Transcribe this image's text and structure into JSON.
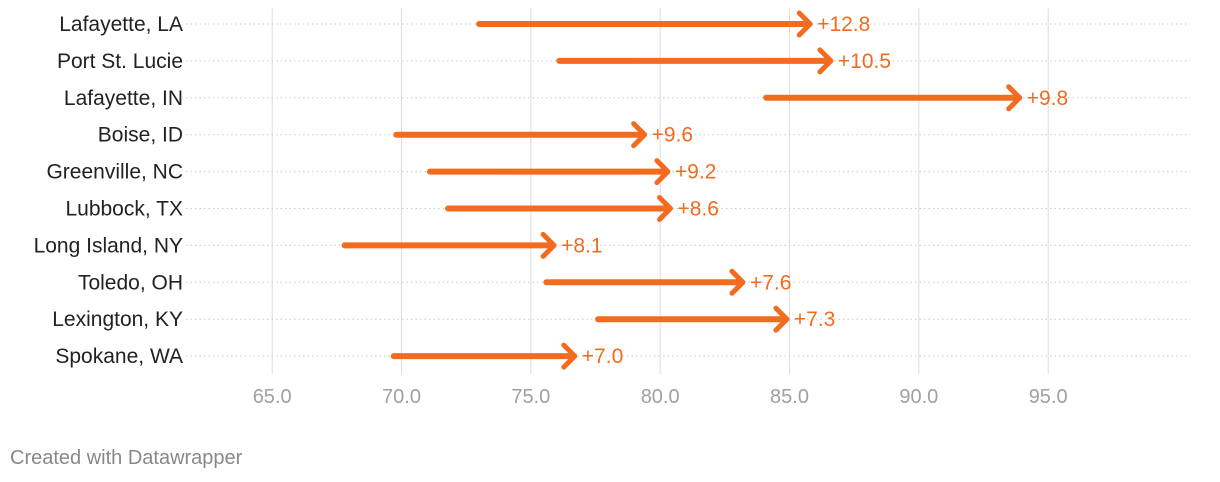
{
  "chart_data": {
    "type": "arrow",
    "categories": [
      "Lafayette, LA",
      "Port St. Lucie",
      "Lafayette, IN",
      "Boise, ID",
      "Greenville, NC",
      "Lubbock, TX",
      "Long Island, NY",
      "Toledo, OH",
      "Lexington, KY",
      "Spokane, WA"
    ],
    "series": [
      {
        "name": "",
        "start": [
          73.0,
          76.1,
          84.1,
          69.8,
          71.1,
          71.8,
          67.8,
          75.6,
          77.6,
          69.7
        ]
      },
      {
        "name": "",
        "end": [
          85.8,
          86.6,
          93.9,
          79.4,
          80.3,
          80.4,
          75.9,
          83.2,
          84.9,
          76.7
        ]
      }
    ],
    "labels": [
      "+12.8",
      "+10.5",
      "+9.8",
      "+9.6",
      "+9.2",
      "+8.6",
      "+8.1",
      "+7.6",
      "+7.3",
      "+7.0"
    ],
    "x_ticks": [
      "65.0",
      "70.0",
      "75.0",
      "80.0",
      "85.0",
      "90.0",
      "95.0"
    ],
    "x_tick_values": [
      65,
      70,
      75,
      80,
      85,
      90,
      95
    ],
    "xlim": [
      62.5,
      100
    ],
    "grid": true,
    "colors": {
      "arrow": "#f26b1f",
      "label": "#f26b1f",
      "tick": "#a0a0a0",
      "grid": "#dddddd",
      "category": "#222222"
    }
  },
  "footer": {
    "credit": "Created with Datawrapper"
  }
}
